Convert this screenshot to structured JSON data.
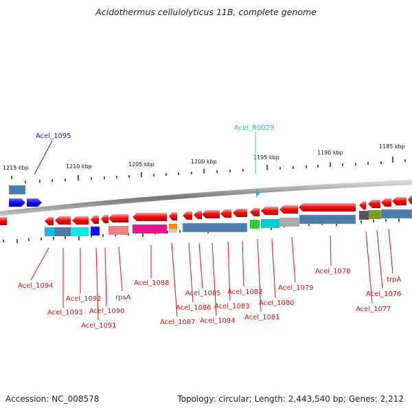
{
  "title": "Acidothermus cellulolyticus 11B, complete genome",
  "footer": {
    "accession_label": "Accession:",
    "accession_value": "NC_008578",
    "topology_label": "Topology:",
    "topology_value": "circular",
    "length_label": "Length:",
    "length_value": "2,443,540 bp",
    "genes_label": "Genes:",
    "genes_value": "2,212"
  },
  "colors": {
    "backbone": "#8a8a8a",
    "gene_arrow": "#ee1111",
    "tick": "#2a7a2a",
    "label_red": "#dd1111",
    "label_blue": "#1a1acc",
    "label_cyan": "#33b5cc",
    "cog_steel": "#4a7ea8"
  },
  "scale_labels": [
    "1215 kbp",
    "1210 kbp",
    "1205 kbp",
    "1200 kbp",
    "1195 kbp",
    "1190 kbp",
    "1185 kbp"
  ],
  "top_labels": [
    {
      "text": "Acel_1095",
      "color": "blue"
    },
    {
      "text": "Acel_R0029",
      "color": "cyan"
    }
  ],
  "bottom_labels": [
    "Acel_1094",
    "Acel_1093",
    "Acel_1092",
    "Acel_1091",
    "Acel_1090",
    "rpsA",
    "Acel_1088",
    "Acel_1087",
    "Acel_1086",
    "Acel_1085",
    "Acel_1084",
    "Acel_1083",
    "Acel_1082",
    "Acel_1081",
    "Acel_1080",
    "Acel_1079",
    "Acel_1078",
    "Acel_1077",
    "Acel_1076",
    "trpA"
  ]
}
